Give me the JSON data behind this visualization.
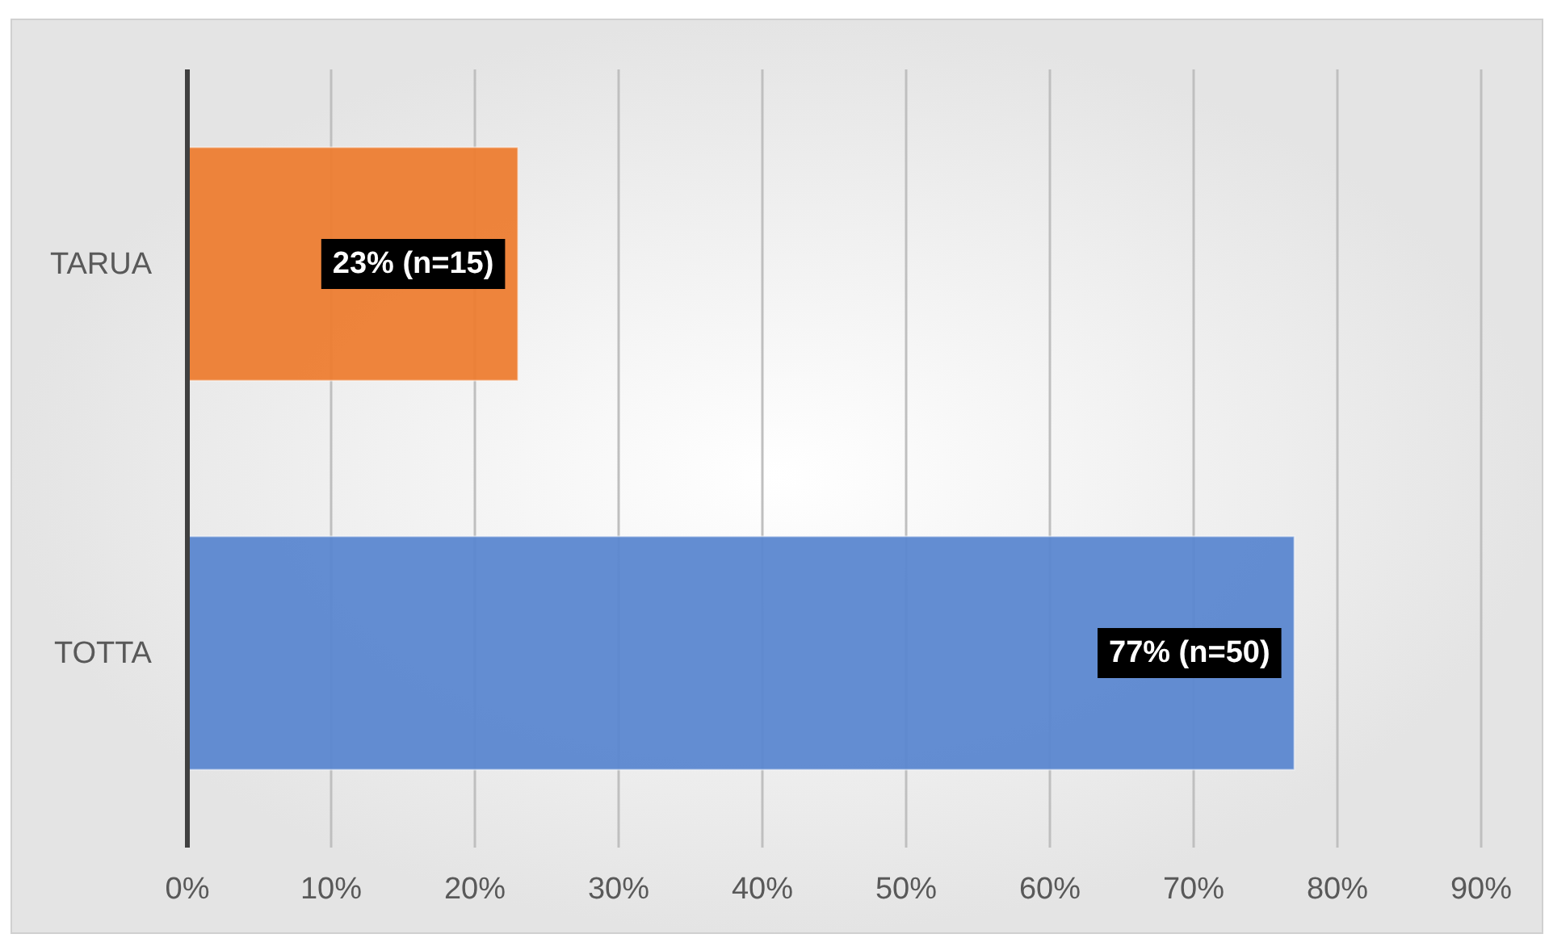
{
  "chart_data": {
    "type": "bar",
    "orientation": "horizontal",
    "categories": [
      "TARUA",
      "TOTTA"
    ],
    "values": [
      23,
      77
    ],
    "colors": [
      "#ed7d31",
      "#5b87d0"
    ],
    "value_labels": [
      "23% (n=15)",
      "77% (n=50)"
    ],
    "xlim": [
      0,
      90
    ],
    "xticks": [
      {
        "value": 0,
        "label": "0%"
      },
      {
        "value": 10,
        "label": "10%"
      },
      {
        "value": 20,
        "label": "20%"
      },
      {
        "value": 30,
        "label": "30%"
      },
      {
        "value": 40,
        "label": "40%"
      },
      {
        "value": 50,
        "label": "50%"
      },
      {
        "value": 60,
        "label": "60%"
      },
      {
        "value": 70,
        "label": "70%"
      },
      {
        "value": 80,
        "label": "80%"
      },
      {
        "value": 90,
        "label": "90%"
      }
    ],
    "grid": "x"
  }
}
